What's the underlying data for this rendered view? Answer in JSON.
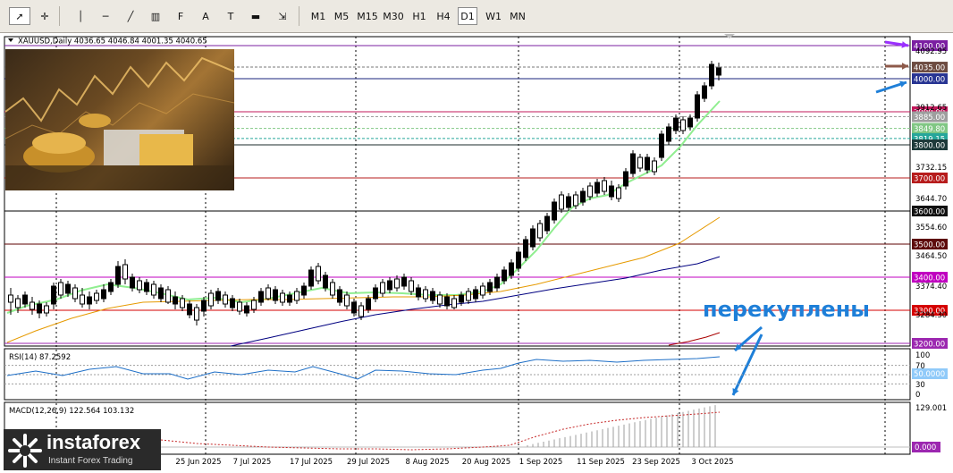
{
  "toolbar": {
    "tools": [
      {
        "name": "cursor-icon",
        "glyph": "➚"
      },
      {
        "name": "crosshair-icon",
        "glyph": "✛"
      },
      {
        "name": "vertical-line-icon",
        "glyph": "│"
      },
      {
        "name": "horizontal-line-icon",
        "glyph": "─"
      },
      {
        "name": "trendline-icon",
        "glyph": "╱"
      },
      {
        "name": "channel-icon",
        "glyph": "▥"
      },
      {
        "name": "fibonacci-icon",
        "glyph": "F"
      },
      {
        "name": "text-icon",
        "glyph": "A"
      },
      {
        "name": "text-label-icon",
        "glyph": "T"
      },
      {
        "name": "rectangle-icon",
        "glyph": "▬"
      },
      {
        "name": "arrows-icon",
        "glyph": "⇲"
      }
    ],
    "timeframes": [
      "M1",
      "M5",
      "M15",
      "M30",
      "H1",
      "H4",
      "D1",
      "W1",
      "MN"
    ],
    "active_timeframe": "D1"
  },
  "chart": {
    "header": "XAUUSD,Daily  4036.65 4046.84 4001.35 4040.65",
    "rsi_label": "RSI(14) 87.2592",
    "macd_label": "MACD(12,26,9) 122.564 103.132",
    "annotation": "перекуплены",
    "price_axis": {
      "ticks": [
        "4092.95",
        "3912.65",
        "3732.15",
        "3644.70",
        "3554.60",
        "3464.50",
        "3374.40",
        "3284.30"
      ],
      "levels": [
        {
          "value": "4100.00",
          "color": "#7b1fa2",
          "bg": "#7b1fa2"
        },
        {
          "value": "4035.00",
          "color": "#777777",
          "bg": "#6d4c41"
        },
        {
          "value": "4000.00",
          "color": "#1a237e",
          "bg": "#283593"
        },
        {
          "value": "3900.00",
          "color": "#c2185b",
          "bg": "#c2185b"
        },
        {
          "value": "3885.00",
          "color": "#9e9e9e",
          "bg": "#9e9e9e"
        },
        {
          "value": "3849.80",
          "color": "#81c784",
          "bg": "#81c784"
        },
        {
          "value": "3819.15",
          "color": "#26a69a",
          "bg": "#26a69a"
        },
        {
          "value": "3800.00",
          "color": "#1b2b2b",
          "bg": "#1e3a3a"
        },
        {
          "value": "3700.00",
          "color": "#b71c1c",
          "bg": "#b71c1c"
        },
        {
          "value": "3600.00",
          "color": "#000000",
          "bg": "#111111"
        },
        {
          "value": "3500.00",
          "color": "#5d0000",
          "bg": "#5d0a0a"
        },
        {
          "value": "3400.00",
          "color": "#c000c0",
          "bg": "#c000c0"
        },
        {
          "value": "3300.00",
          "color": "#d50000",
          "bg": "#d50000"
        },
        {
          "value": "3200.00",
          "color": "#9c27b0",
          "bg": "#9c27b0"
        }
      ]
    },
    "rsi_axis": [
      "100",
      "70",
      "50.0000",
      "30",
      "0"
    ],
    "macd_axis": [
      "129.001",
      "0.000"
    ],
    "dates": [
      "25 Jun 2025",
      "7 Jul 2025",
      "17 Jul 2025",
      "29 Jul 2025",
      "8 Aug 2025",
      "20 Aug 2025",
      "1 Sep 2025",
      "11 Sep 2025",
      "23 Sep 2025",
      "3 Oct 2025"
    ],
    "date_cut": "2025"
  },
  "watermark": {
    "brand": "instaforex",
    "tagline": "Instant Forex Trading"
  },
  "colors": {
    "ma_fast": "#90ee90",
    "ma_mid": "#e69a00",
    "ma_slow": "#000080",
    "ma_long": "#aa0000",
    "rsi": "#1e6fc7",
    "arrow": "#1e7fd8",
    "grid": "#000000"
  }
}
